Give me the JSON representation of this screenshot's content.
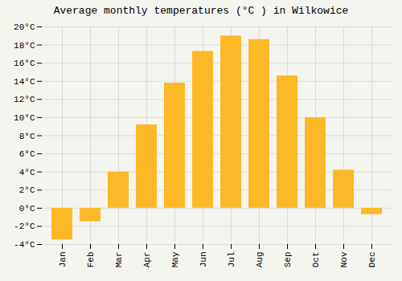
{
  "chart_data": {
    "type": "bar",
    "title": "Average monthly temperatures (°C ) in Wilkowice",
    "categories": [
      "Jan",
      "Feb",
      "Mar",
      "Apr",
      "May",
      "Jun",
      "Jul",
      "Aug",
      "Sep",
      "Oct",
      "Nov",
      "Dec"
    ],
    "values": [
      -3.5,
      -1.5,
      4.0,
      9.2,
      13.8,
      17.3,
      19.0,
      18.6,
      14.6,
      10.0,
      4.2,
      -0.7
    ],
    "color": "#FDB827",
    "ylim": [
      -4,
      20
    ],
    "yticks": [
      {
        "value": -4,
        "label": "-4°C"
      },
      {
        "value": -2,
        "label": "-2°C"
      },
      {
        "value": 0,
        "label": "0°C"
      },
      {
        "value": 2,
        "label": "2°C"
      },
      {
        "value": 4,
        "label": "4°C"
      },
      {
        "value": 6,
        "label": "6°C"
      },
      {
        "value": 8,
        "label": "8°C"
      },
      {
        "value": 10,
        "label": "10°C"
      },
      {
        "value": 12,
        "label": "12°C"
      },
      {
        "value": 14,
        "label": "14°C"
      },
      {
        "value": 16,
        "label": "16°C"
      },
      {
        "value": 18,
        "label": "18°C"
      },
      {
        "value": 20,
        "label": "20°C"
      }
    ],
    "grid": true
  }
}
